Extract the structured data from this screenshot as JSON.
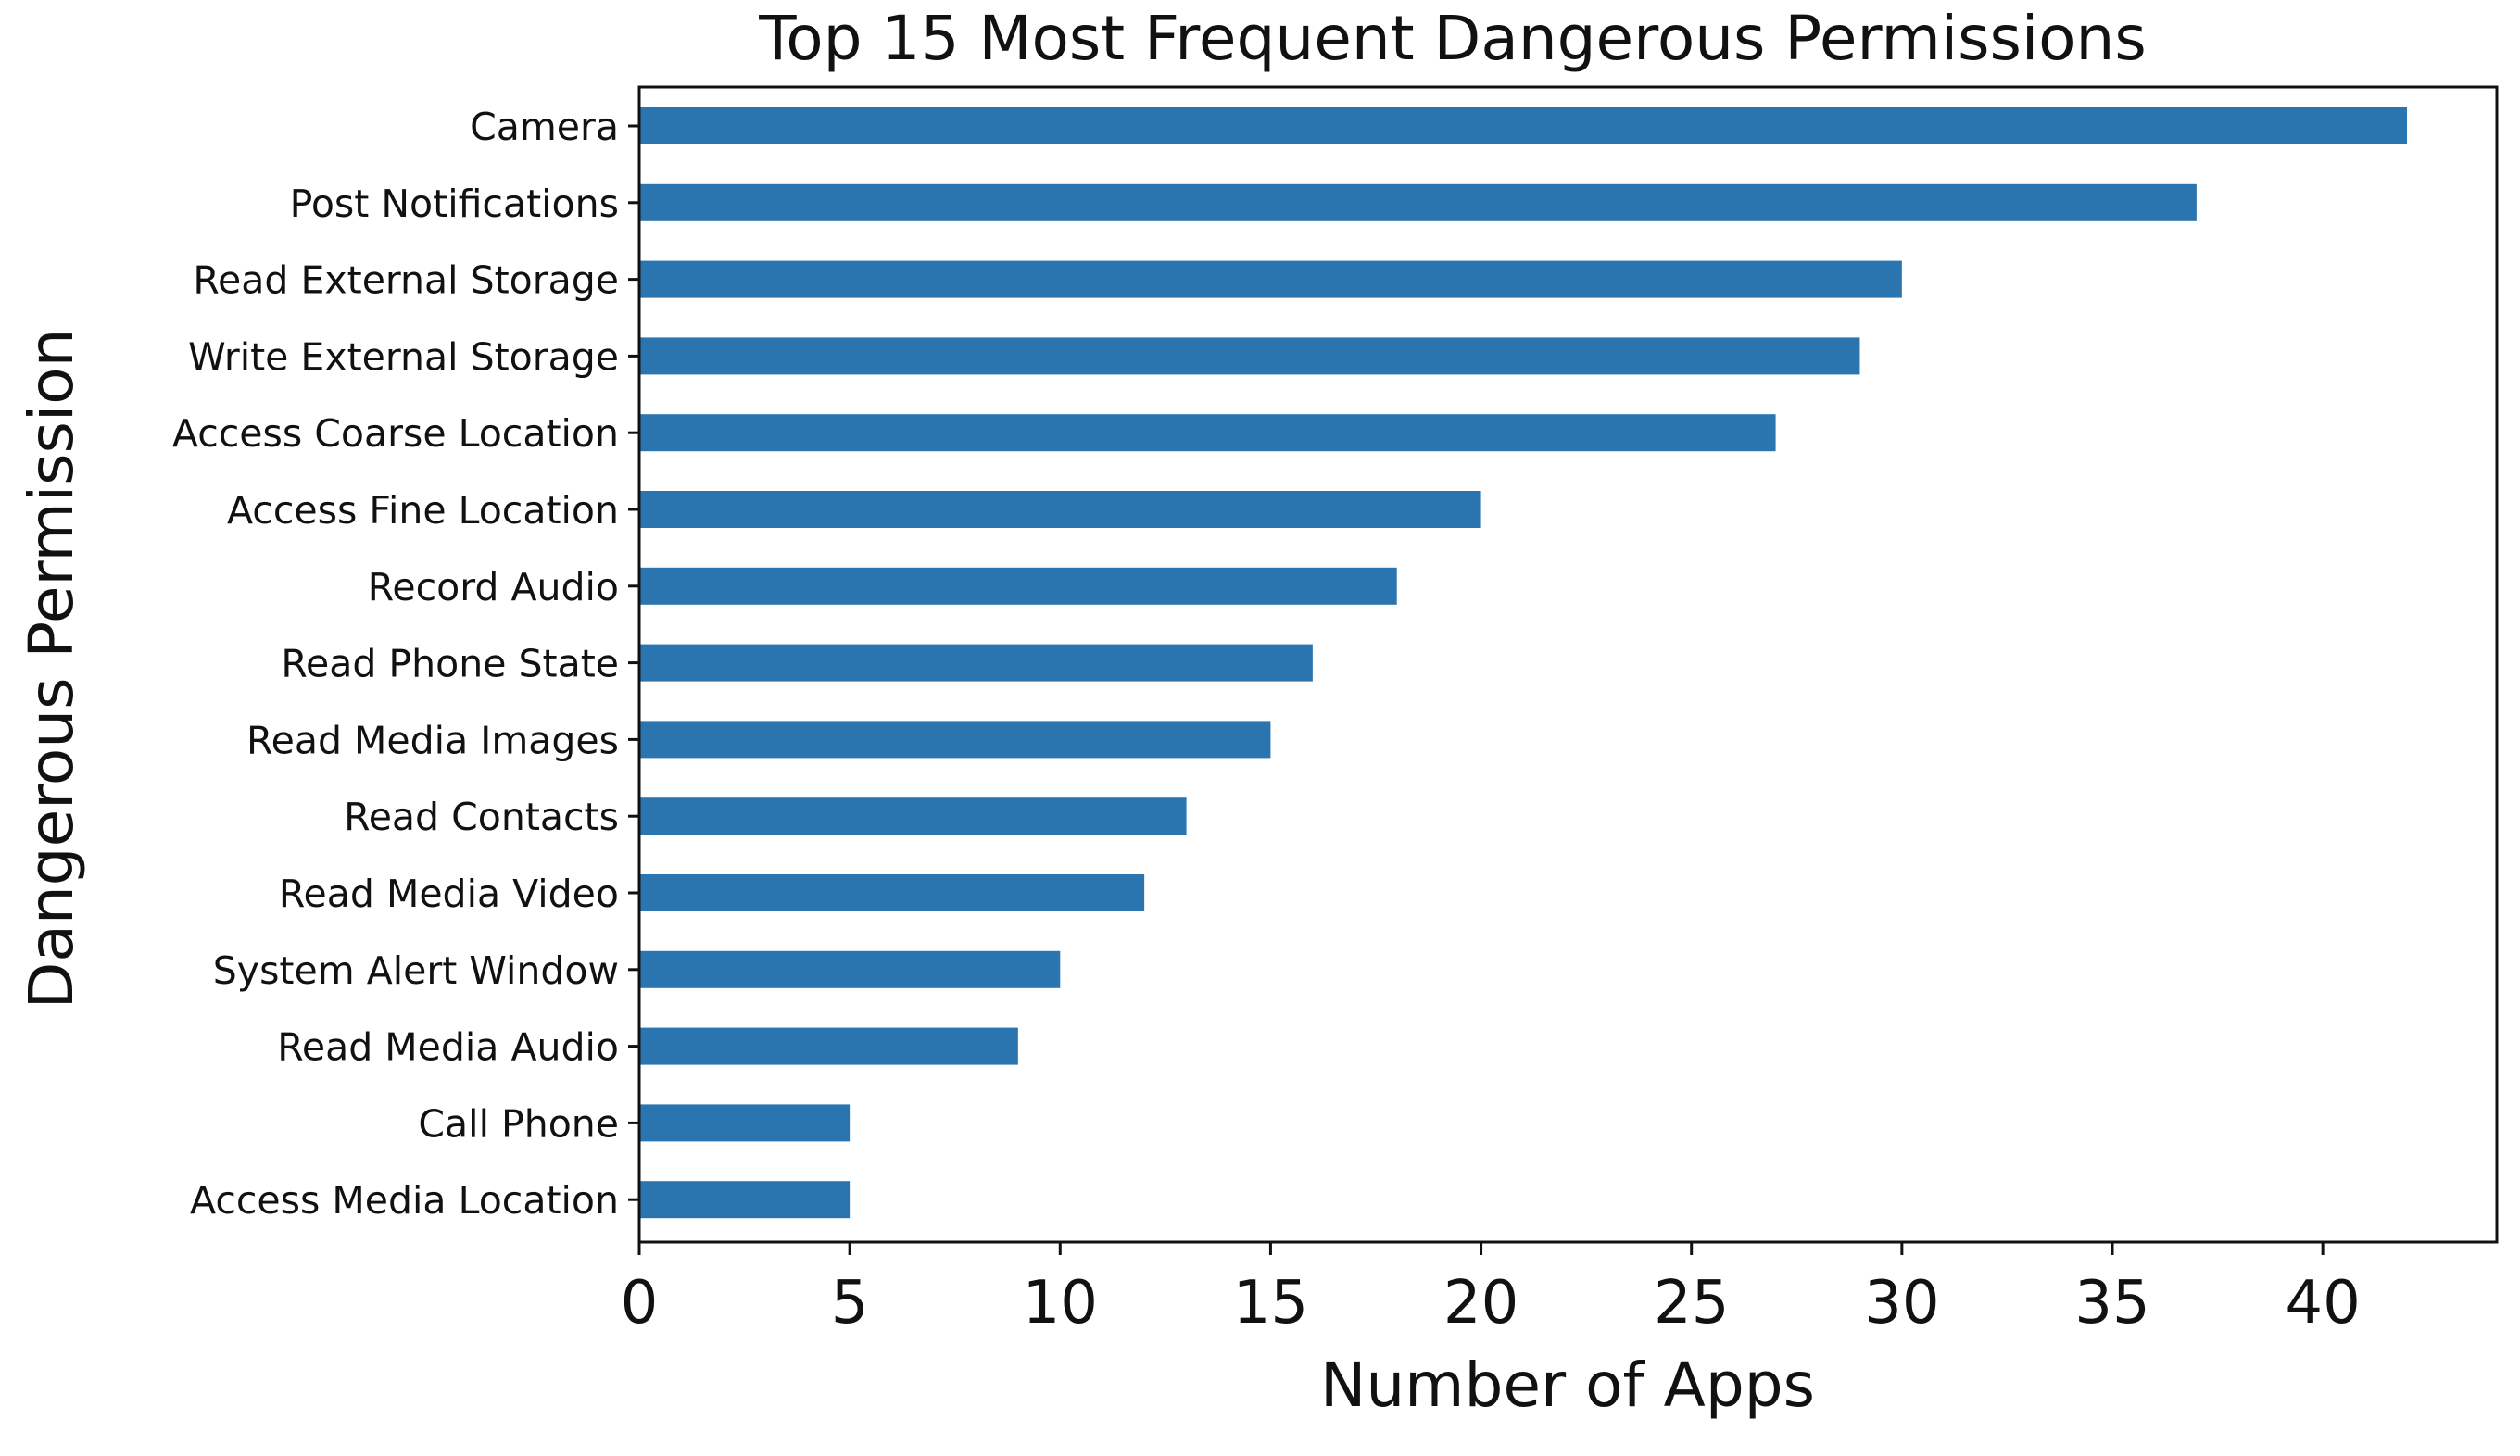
{
  "chart_data": {
    "type": "bar",
    "orientation": "horizontal",
    "title": "Top 15 Most Frequent Dangerous Permissions",
    "xlabel": "Number of Apps",
    "ylabel": "Dangerous Permission",
    "categories": [
      "Camera",
      "Post Notifications",
      "Read External Storage",
      "Write External Storage",
      "Access Coarse Location",
      "Access Fine Location",
      "Record Audio",
      "Read Phone State",
      "Read Media Images",
      "Read Contacts",
      "Read Media Video",
      "System Alert Window",
      "Read Media Audio",
      "Call Phone",
      "Access Media Location"
    ],
    "values": [
      42,
      37,
      30,
      29,
      27,
      20,
      18,
      16,
      15,
      13,
      12,
      10,
      9,
      5,
      5
    ],
    "xlim": [
      0,
      44
    ],
    "xticks": [
      0,
      5,
      10,
      15,
      20,
      25,
      30,
      35,
      40
    ],
    "grid": false,
    "legend": "none",
    "bar_color": "#2a74b0"
  }
}
